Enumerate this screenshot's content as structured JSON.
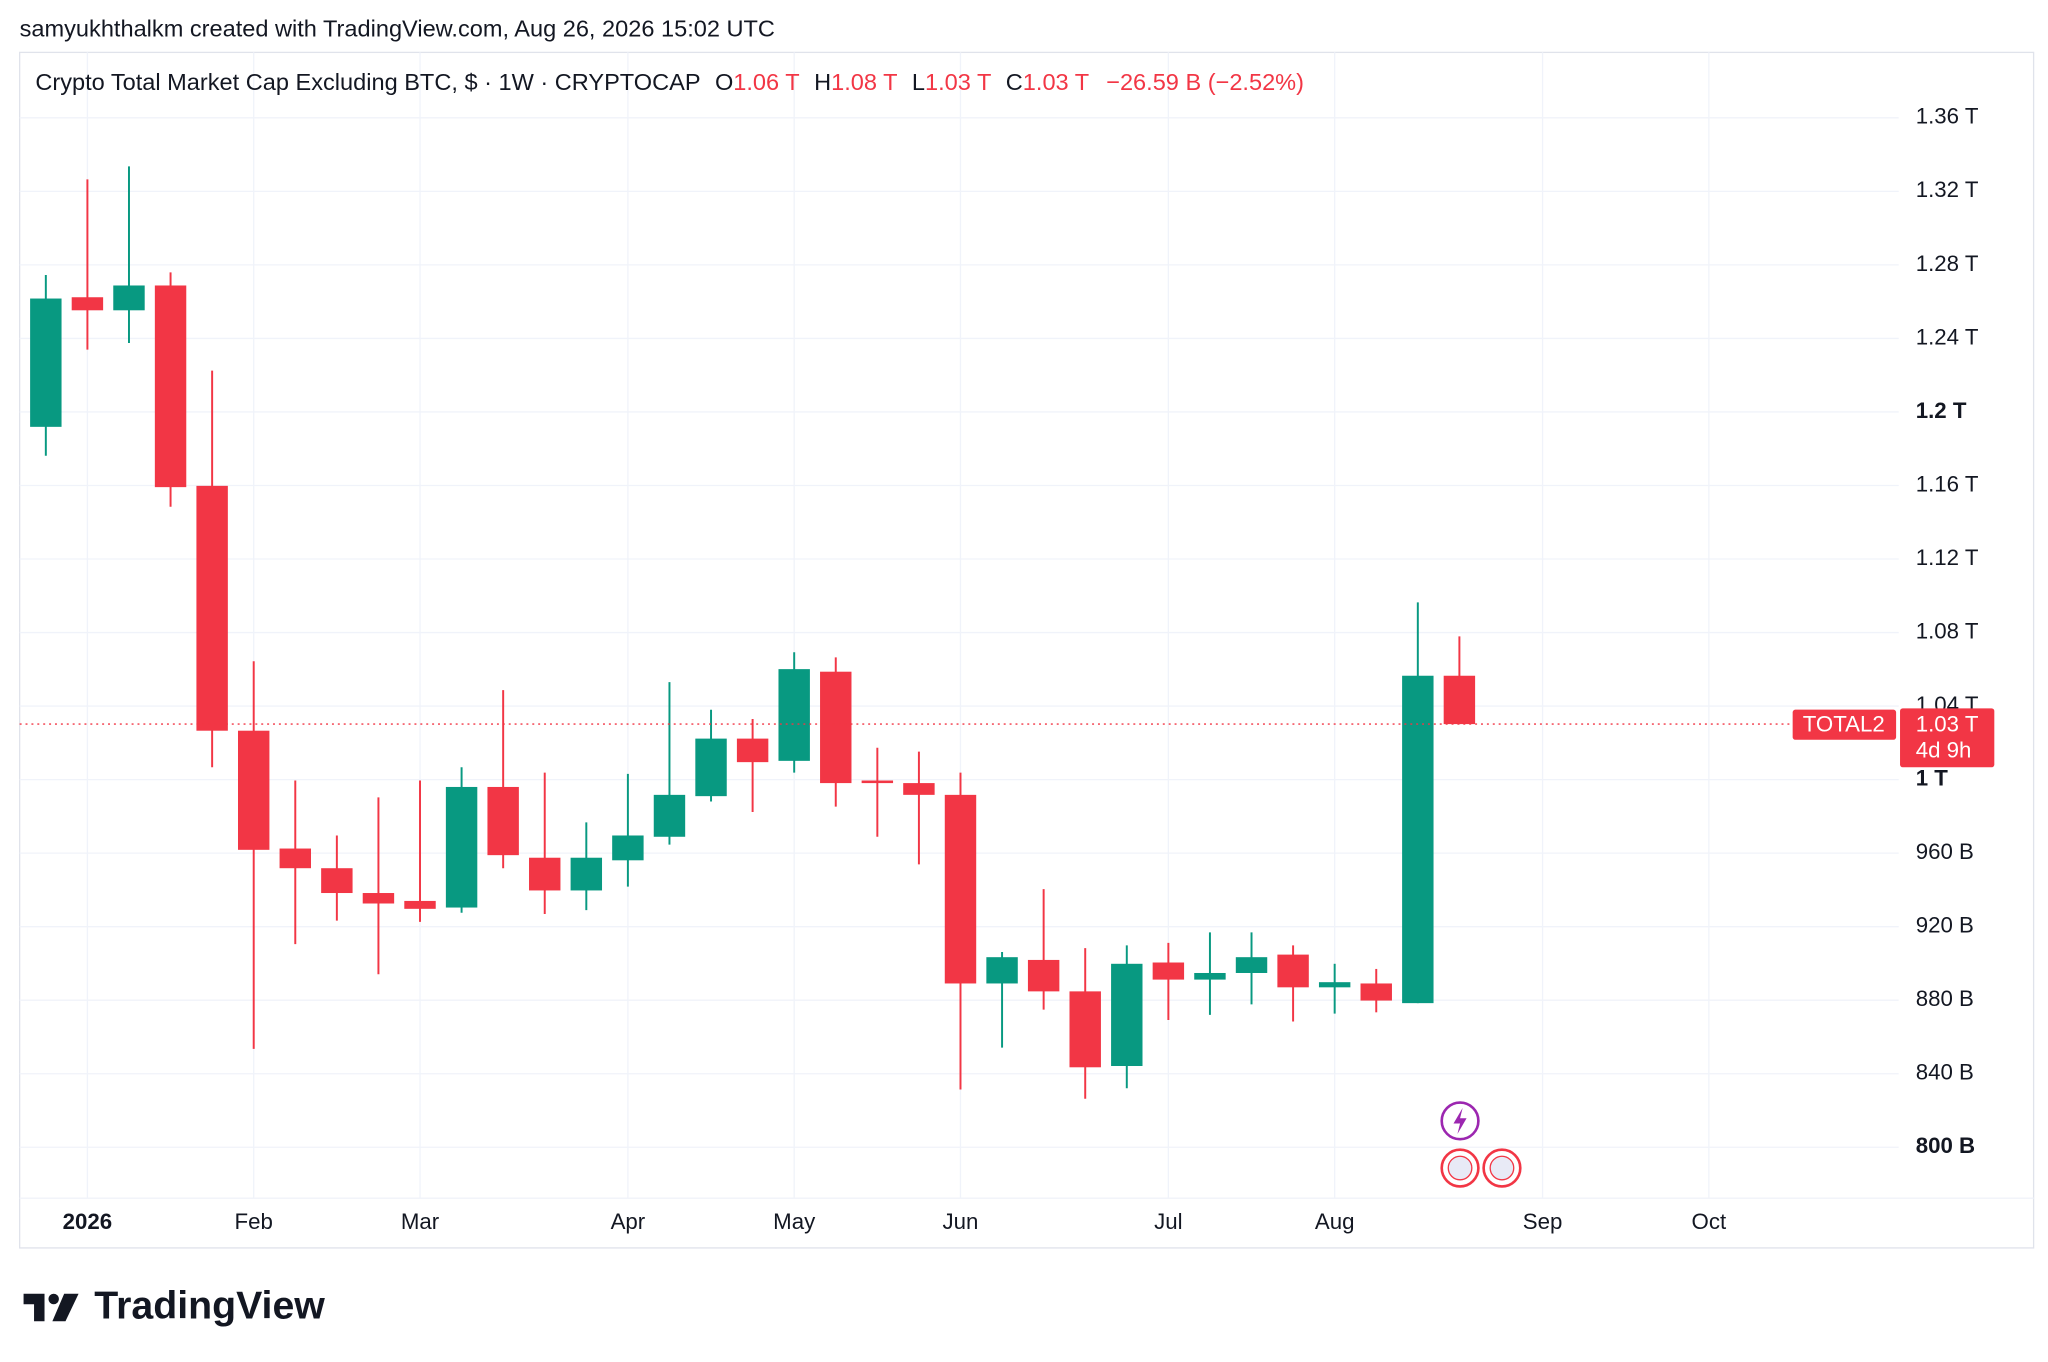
{
  "watermark": "samyukhthalkm created with TradingView.com, Aug 26, 2026 15:02 UTC",
  "footer": "TradingView",
  "chart_data": {
    "type": "candlestick",
    "title": "Crypto Total Market Cap Excluding BTC, $ · 1W · CRYPTOCAP",
    "ohlc_legend": {
      "o": "O",
      "open": "1.06 T",
      "h": "H",
      "high": "1.08 T",
      "l": "L",
      "low": "1.03 T",
      "c": "C",
      "close": "1.03 T",
      "change": "−26.59 B (−2.52%)"
    },
    "symbol": "TOTAL2",
    "last_price_label": "1.03 T",
    "countdown": "4d 9h",
    "up_color": "#089981",
    "down_color": "#f23645",
    "categories": [
      null,
      "2026",
      null,
      null,
      null,
      "Feb",
      null,
      null,
      null,
      "Mar",
      null,
      null,
      null,
      null,
      "Apr",
      null,
      null,
      null,
      "May",
      null,
      null,
      null,
      "Jun",
      null,
      null,
      null,
      null,
      "Jul",
      null,
      null,
      null,
      "Aug",
      null,
      null,
      null,
      null,
      "Sep",
      null,
      null,
      null,
      "Oct"
    ],
    "open": [
      1191.9,
      1262.4,
      1255.3,
      1268.8,
      1159.8,
      1026.6,
      962.5,
      951.8,
      938.3,
      934.0,
      930.4,
      996.0,
      957.5,
      939.7,
      956.1,
      968.9,
      991.0,
      1022.3,
      1010.2,
      1058.7,
      999.5,
      998.1,
      991.7,
      889.1,
      901.9,
      884.8,
      844.2,
      900.5,
      891.2,
      894.8,
      904.8,
      887.0,
      889.1,
      878.4,
      1056.5,
      null,
      null,
      null,
      null,
      null,
      null
    ],
    "high": [
      1274.5,
      1326.5,
      1333.6,
      1275.9,
      1222.5,
      1064.4,
      999.5,
      969.6,
      990.3,
      999.5,
      1006.7,
      1048.7,
      1003.8,
      976.7,
      1003.1,
      1053.0,
      1038.0,
      1033.0,
      1069.3,
      1066.5,
      1017.3,
      1015.2,
      1003.8,
      906.2,
      940.4,
      908.3,
      909.8,
      911.2,
      916.9,
      916.9,
      909.8,
      899.8,
      897.0,
      1096.4,
      1077.9,
      null,
      null,
      null,
      null,
      null,
      null
    ],
    "low": [
      1176.2,
      1233.9,
      1237.5,
      1148.4,
      1006.7,
      853.5,
      910.5,
      923.3,
      894.1,
      922.6,
      927.6,
      951.8,
      926.9,
      929.0,
      941.8,
      964.6,
      988.1,
      982.4,
      1003.8,
      985.3,
      968.9,
      953.9,
      831.4,
      854.2,
      874.9,
      826.4,
      832.1,
      869.2,
      872.0,
      877.7,
      868.4,
      872.7,
      873.4,
      878.4,
      1030.2,
      null,
      null,
      null,
      null,
      null,
      null
    ],
    "close": [
      1261.7,
      1255.3,
      1268.8,
      1159.1,
      1026.6,
      961.8,
      951.8,
      938.3,
      932.6,
      929.7,
      996.0,
      958.9,
      939.7,
      957.5,
      969.6,
      991.7,
      1022.3,
      1009.5,
      1060.1,
      998.1,
      998.1,
      991.7,
      889.1,
      903.4,
      884.8,
      843.5,
      899.8,
      891.2,
      894.8,
      903.4,
      887.0,
      889.8,
      879.8,
      1056.5,
      1030.2,
      null,
      null,
      null,
      null,
      null,
      null
    ],
    "ylim": [
      772.3,
      1395.6
    ],
    "yticks": [
      {
        "value": 1360,
        "label": "1.36 T"
      },
      {
        "value": 1320,
        "label": "1.32 T"
      },
      {
        "value": 1280,
        "label": "1.28 T"
      },
      {
        "value": 1240,
        "label": "1.24 T"
      },
      {
        "value": 1200,
        "label": "1.2 T",
        "bold": true
      },
      {
        "value": 1160,
        "label": "1.16 T"
      },
      {
        "value": 1120,
        "label": "1.12 T"
      },
      {
        "value": 1080,
        "label": "1.08 T"
      },
      {
        "value": 1040,
        "label": "1.04 T"
      },
      {
        "value": 1000,
        "label": "1 T",
        "bold": true
      },
      {
        "value": 960,
        "label": "960 B"
      },
      {
        "value": 920,
        "label": "920 B"
      },
      {
        "value": 880,
        "label": "880 B"
      },
      {
        "value": 840,
        "label": "840 B"
      },
      {
        "value": 800,
        "label": "800 B",
        "bold": true
      }
    ],
    "grid": true
  }
}
